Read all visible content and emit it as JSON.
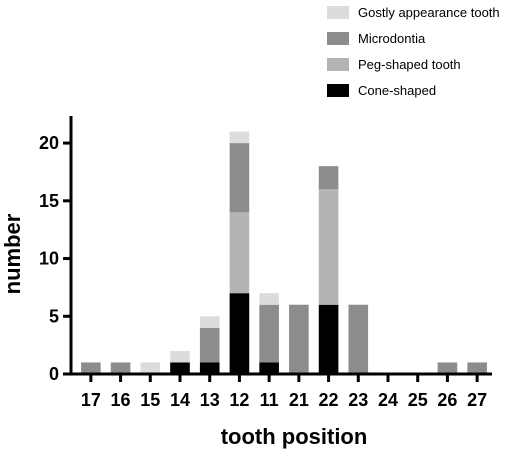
{
  "chart_data": {
    "type": "bar",
    "stacked": true,
    "xlabel": "tooth position",
    "ylabel": "number",
    "ylim": [
      0,
      22
    ],
    "yticks": [
      0,
      5,
      10,
      15,
      20
    ],
    "categories": [
      "17",
      "16",
      "15",
      "14",
      "13",
      "12",
      "11",
      "21",
      "22",
      "23",
      "24",
      "25",
      "26",
      "27"
    ],
    "series": [
      {
        "name": "Cone-shaped",
        "color": "#000000",
        "values": [
          0,
          0,
          0,
          1,
          1,
          7,
          1,
          0,
          6,
          0,
          0,
          0,
          0,
          0
        ]
      },
      {
        "name": "Peg-shaped tooth",
        "color": "#b4b4b4",
        "values": [
          0,
          0,
          0,
          0,
          0,
          7,
          0,
          0,
          10,
          0,
          0,
          0,
          0,
          0
        ]
      },
      {
        "name": "Microdontia",
        "color": "#8c8c8c",
        "values": [
          1,
          1,
          0,
          0,
          3,
          6,
          5,
          6,
          2,
          6,
          0,
          0,
          1,
          1
        ]
      },
      {
        "name": "Gostly appearance tooth",
        "color": "#dcdcdc",
        "values": [
          0,
          0,
          1,
          1,
          1,
          1,
          1,
          0,
          0,
          0,
          0,
          0,
          0,
          0
        ]
      }
    ],
    "legend_order": [
      "Gostly appearance tooth",
      "Microdontia",
      "Peg-shaped tooth",
      "Cone-shaped"
    ],
    "legend_position": "top-right",
    "grid": false
  }
}
